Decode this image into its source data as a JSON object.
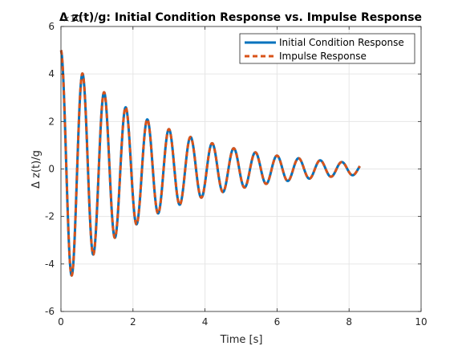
{
  "chart_data": {
    "type": "line",
    "title": "Δ z(t)/g: Initial Condition Response vs. Impulse Response",
    "xlabel": "Time [s]",
    "ylabel": "Δ z(t)/g",
    "xlim": [
      0,
      10
    ],
    "ylim": [
      -6,
      6
    ],
    "y_multiplier_label": "×10",
    "y_multiplier_exponent": "-3",
    "xticks": [
      "0",
      "2",
      "4",
      "6",
      "8",
      "10"
    ],
    "yticks": [
      "-6",
      "-4",
      "-2",
      "0",
      "2",
      "4",
      "6"
    ],
    "grid": true,
    "legend_position": "top-right",
    "series": [
      {
        "name": "Initial Condition Response",
        "color": "#0072BD",
        "style": "solid",
        "model": {
          "amplitude": 5.0,
          "decay": 0.364,
          "omega": 10.47,
          "t_end": 8.3
        }
      },
      {
        "name": "Impulse Response",
        "color": "#D95319",
        "style": "dashed",
        "model": {
          "amplitude": 5.0,
          "decay": 0.364,
          "omega": 10.47,
          "t_end": 8.3
        }
      }
    ]
  }
}
